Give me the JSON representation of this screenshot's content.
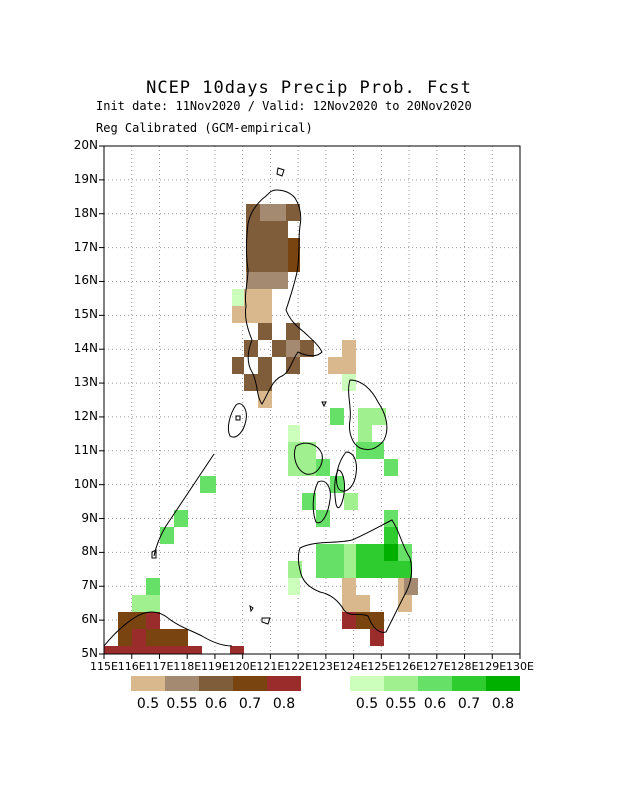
{
  "title": "NCEP 10days Precip Prob. Fcst",
  "subtitle1": "Init date: 11Nov2020 / Valid: 12Nov2020 to 20Nov2020",
  "subtitle2": "Reg Calibrated (GCM-empirical)",
  "y_ticks": [
    "20N",
    "19N",
    "18N",
    "17N",
    "16N",
    "15N",
    "14N",
    "13N",
    "12N",
    "11N",
    "10N",
    "9N",
    "8N",
    "7N",
    "6N",
    "5N"
  ],
  "x_ticks": [
    "115E",
    "116E",
    "117E",
    "118E",
    "119E",
    "120E",
    "121E",
    "122E",
    "123E",
    "124E",
    "125E",
    "126E",
    "127E",
    "128E",
    "129E",
    "130E"
  ],
  "legend_dry": {
    "colors": [
      "#d8b88c",
      "#a58a72",
      "#7f5c3a",
      "#7a4410",
      "#9b2c2c"
    ],
    "labels": [
      "0.5",
      "0.55",
      "0.6",
      "0.7",
      "0.8"
    ]
  },
  "legend_wet": {
    "colors": [
      "#ccffbb",
      "#a0f090",
      "#66e066",
      "#2ecc2e",
      "#00b000"
    ],
    "labels": [
      "0.5",
      "0.55",
      "0.6",
      "0.7",
      "0.8"
    ]
  }
}
